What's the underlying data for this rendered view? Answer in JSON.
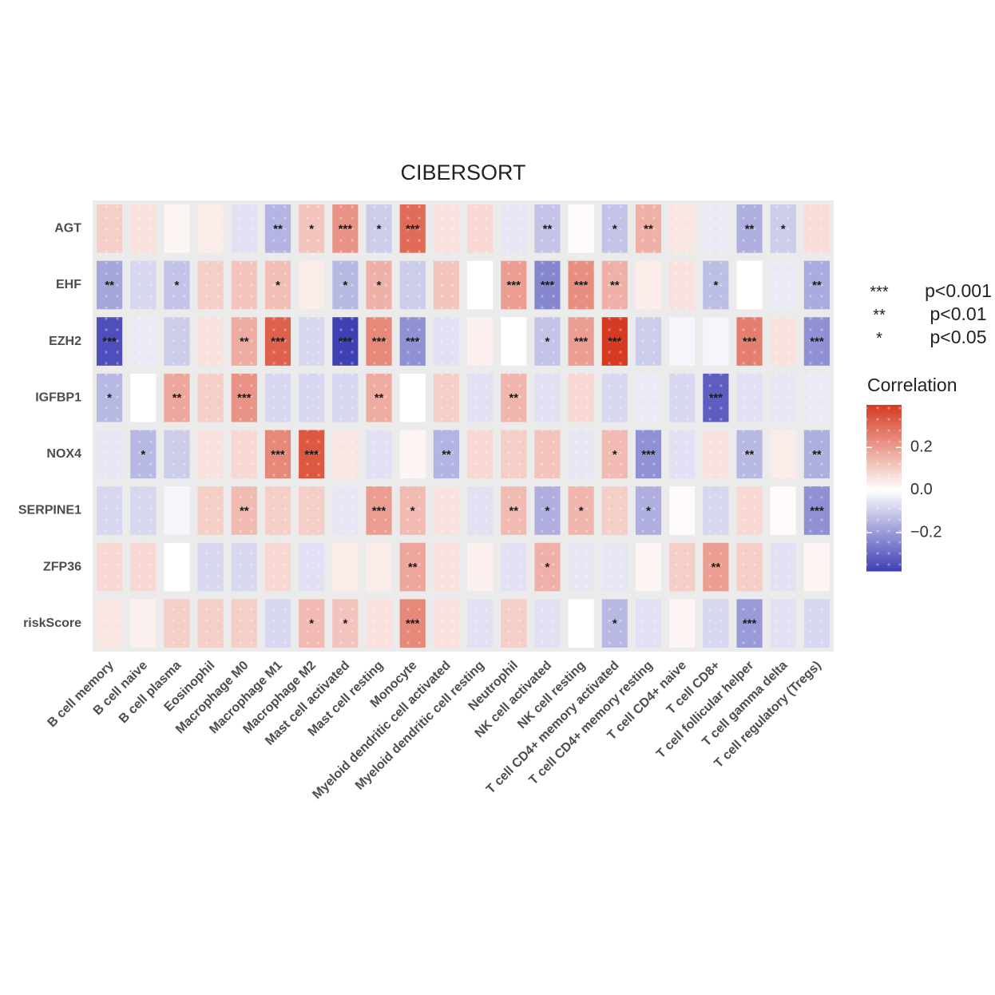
{
  "chart_data": {
    "type": "heatmap",
    "title": "CIBERSORT",
    "xlabel": "",
    "ylabel": "",
    "rows": [
      "AGT",
      "EHF",
      "EZH2",
      "IGFBP1",
      "NOX4",
      "SERPINE1",
      "ZFP36",
      "riskScore"
    ],
    "columns": [
      "B cell memory",
      "B cell naive",
      "B cell plasma",
      "Eosinophil",
      "Macrophage M0",
      "Macrophage M1",
      "Macrophage M2",
      "Mast cell activated",
      "Mast cell resting",
      "Monocyte",
      "Myeloid dendritic cell activated",
      "Myeloid dendritic cell resting",
      "Neutrophil",
      "NK cell activated",
      "NK cell resting",
      "T cell CD4+ memory activated",
      "T cell CD4+ memory resting",
      "T cell CD4+ naive",
      "T cell CD8+",
      "T cell follicular helper",
      "T cell gamma delta",
      "T cell regulatory (Tregs)"
    ],
    "values": [
      [
        0.1,
        0.06,
        0.02,
        0.04,
        -0.06,
        -0.15,
        0.12,
        0.22,
        -0.1,
        0.3,
        0.06,
        0.08,
        -0.05,
        -0.12,
        0.01,
        -0.12,
        0.16,
        0.05,
        -0.04,
        -0.16,
        -0.1,
        0.07
      ],
      [
        -0.18,
        -0.08,
        -0.12,
        0.1,
        0.12,
        0.13,
        0.04,
        -0.14,
        0.16,
        -0.1,
        0.12,
        0.0,
        0.2,
        -0.24,
        0.23,
        0.16,
        0.04,
        0.06,
        -0.13,
        0.0,
        -0.04,
        -0.17
      ],
      [
        -0.35,
        -0.04,
        -0.1,
        0.06,
        0.17,
        0.32,
        -0.08,
        -0.38,
        0.24,
        -0.22,
        -0.06,
        0.03,
        0.0,
        -0.12,
        0.2,
        0.4,
        -0.1,
        -0.02,
        -0.02,
        0.26,
        0.06,
        -0.22
      ],
      [
        -0.14,
        0.0,
        0.18,
        0.1,
        0.22,
        -0.08,
        -0.08,
        -0.08,
        0.17,
        0.0,
        0.1,
        -0.06,
        0.15,
        -0.06,
        0.08,
        -0.08,
        -0.04,
        -0.08,
        -0.32,
        -0.06,
        -0.05,
        -0.04
      ],
      [
        -0.05,
        -0.14,
        -0.1,
        0.06,
        0.08,
        0.24,
        0.34,
        0.05,
        -0.06,
        0.02,
        -0.15,
        0.08,
        0.1,
        0.12,
        -0.05,
        0.14,
        -0.22,
        -0.06,
        0.06,
        -0.14,
        0.04,
        -0.16
      ],
      [
        -0.08,
        -0.08,
        -0.02,
        0.1,
        0.14,
        0.1,
        0.1,
        -0.05,
        0.2,
        0.14,
        0.06,
        -0.06,
        0.14,
        -0.16,
        0.15,
        0.1,
        -0.16,
        0.01,
        -0.08,
        0.08,
        0.01,
        -0.22
      ],
      [
        0.08,
        0.08,
        0.0,
        -0.08,
        -0.08,
        0.08,
        -0.06,
        0.04,
        0.04,
        0.18,
        0.06,
        0.03,
        -0.06,
        0.16,
        -0.05,
        -0.05,
        0.02,
        0.1,
        0.2,
        0.1,
        -0.06,
        0.02
      ],
      [
        0.05,
        0.03,
        0.1,
        0.1,
        0.1,
        -0.08,
        0.14,
        0.12,
        0.06,
        0.24,
        0.06,
        -0.06,
        0.1,
        -0.06,
        0.0,
        -0.14,
        -0.06,
        0.02,
        -0.08,
        -0.2,
        -0.06,
        -0.08
      ]
    ],
    "significance": [
      [
        "",
        "",
        "",
        "",
        "",
        "**",
        "*",
        "***",
        "*",
        "***",
        "",
        "",
        "",
        "**",
        "",
        "*",
        "**",
        "",
        "",
        "**",
        "*",
        ""
      ],
      [
        "**",
        "",
        "*",
        "",
        "",
        "*",
        "",
        "*",
        "*",
        "",
        "",
        "",
        "***",
        "***",
        "***",
        "**",
        "",
        "",
        "*",
        "",
        "",
        "**"
      ],
      [
        "***",
        "",
        "",
        "",
        "**",
        "***",
        "",
        "***",
        "***",
        "***",
        "",
        "",
        "",
        "*",
        "***",
        "***",
        "",
        "",
        "",
        "***",
        "",
        "***"
      ],
      [
        "*",
        "",
        "**",
        "",
        "***",
        "",
        "",
        "",
        "**",
        "",
        "",
        "",
        "**",
        "",
        "",
        "",
        "",
        "",
        "***",
        "",
        "",
        ""
      ],
      [
        "",
        "*",
        "",
        "",
        "",
        "***",
        "***",
        "",
        "",
        "",
        "**",
        "",
        "",
        "",
        "",
        "*",
        "***",
        "",
        "",
        "**",
        "",
        "**"
      ],
      [
        "",
        "",
        "",
        "",
        "**",
        "",
        "",
        "",
        "***",
        "*",
        "",
        "",
        "**",
        "*",
        "*",
        "",
        "*",
        "",
        "",
        "",
        "",
        "***"
      ],
      [
        "",
        "",
        "",
        "",
        "",
        "",
        "",
        "",
        "",
        "**",
        "",
        "",
        "",
        "*",
        "",
        "",
        "",
        "",
        "**",
        "",
        "",
        ""
      ],
      [
        "",
        "",
        "",
        "",
        "",
        "",
        "*",
        "*",
        "",
        "***",
        "",
        "",
        "",
        "",
        "",
        "*",
        "",
        "",
        "",
        "***",
        "",
        ""
      ]
    ],
    "legend": {
      "significance_title": "",
      "significance": [
        {
          "symbol": "***",
          "label": "p<0.001"
        },
        {
          "symbol": "**",
          "label": "p<0.01"
        },
        {
          "symbol": "*",
          "label": "p<0.05"
        }
      ],
      "colorbar_title": "Correlation",
      "colorbar_ticks": [
        "0.2",
        "0.0",
        "−0.2"
      ],
      "colorbar_tick_values": [
        0.2,
        0.0,
        -0.2
      ],
      "range": [
        -0.38,
        0.4
      ],
      "placement": "right"
    },
    "colors": {
      "high": "#d63a22",
      "mid": "#ffffff",
      "low": "#3f40b4",
      "grid": "#c8c8c8",
      "text": "#333333",
      "axis_text": "#4d4d4d"
    }
  }
}
